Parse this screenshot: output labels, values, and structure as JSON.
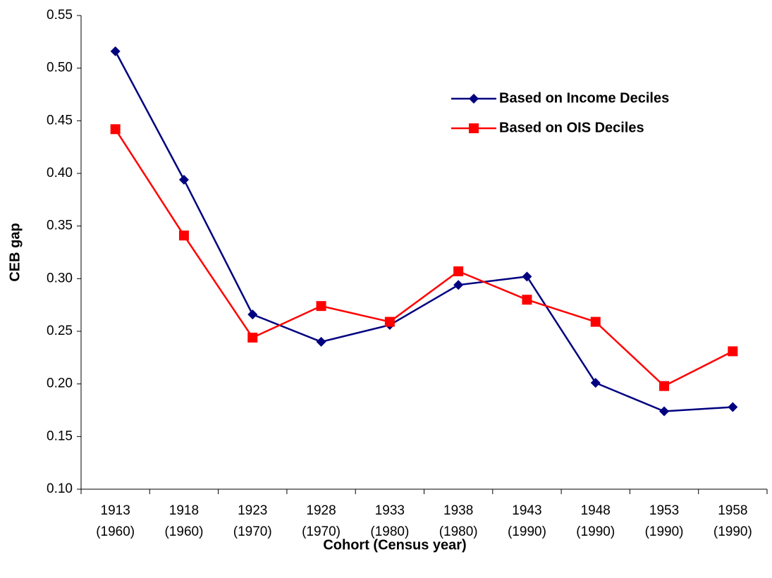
{
  "chart_data": {
    "type": "line",
    "x_label": "Cohort (Census year)",
    "y_label": "CEB gap",
    "categories": [
      [
        "1913",
        "(1960)"
      ],
      [
        "1918",
        "(1960)"
      ],
      [
        "1923",
        "(1970)"
      ],
      [
        "1928",
        "(1970)"
      ],
      [
        "1933",
        "(1980)"
      ],
      [
        "1938",
        "(1980)"
      ],
      [
        "1943",
        "(1990)"
      ],
      [
        "1948",
        "(1990)"
      ],
      [
        "1953",
        "(1990)"
      ],
      [
        "1958",
        "(1990)"
      ]
    ],
    "series": [
      {
        "name": "Based on Income Deciles",
        "color": "#000080",
        "marker": "diamond",
        "values": [
          0.516,
          0.394,
          0.266,
          0.24,
          0.256,
          0.294,
          0.302,
          0.201,
          0.174,
          0.178
        ]
      },
      {
        "name": "Based on OIS Deciles",
        "color": "#ff0000",
        "marker": "square",
        "values": [
          0.442,
          0.341,
          0.244,
          0.274,
          0.259,
          0.307,
          0.28,
          0.259,
          0.198,
          0.231
        ]
      }
    ],
    "ylim": [
      0.1,
      0.55
    ],
    "yticks": [
      {
        "value": 0.1,
        "label": "0.10"
      },
      0.15,
      {
        "value": 0.2,
        "label": "0.20"
      },
      0.25,
      {
        "value": 0.3,
        "label": "0.30"
      },
      0.35,
      {
        "value": 0.4,
        "label": "0.40"
      },
      0.45,
      {
        "value": 0.5,
        "label": "0.50"
      },
      0.55
    ],
    "grid": false,
    "legend": "upper right"
  }
}
